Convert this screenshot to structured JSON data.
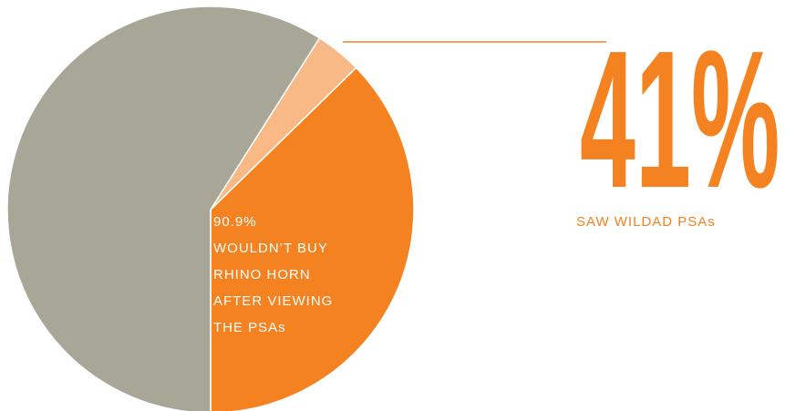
{
  "chart_data": {
    "type": "pie",
    "values": [
      37.3,
      3.7,
      59
    ],
    "colors": [
      "#f58220",
      "#f9b986",
      "#a8a697"
    ],
    "headline": {
      "value": 41,
      "label": "41%"
    },
    "headline_caption": "SAW WILDAD PSAs",
    "inner_value": {
      "value": 90.9,
      "label": "90.9%"
    },
    "inner_lines": [
      "WOULDN’T BUY",
      "RHINO HORN",
      "AFTER VIEWING",
      "THE PSAs"
    ]
  }
}
